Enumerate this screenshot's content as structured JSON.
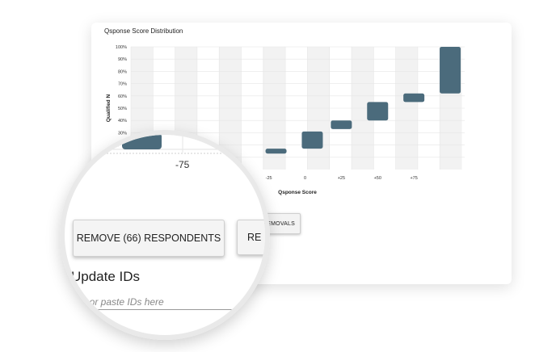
{
  "chart_data": {
    "type": "bar",
    "title": "Qsponse Score Distribution",
    "xlabel": "Qsponse Score",
    "ylabel": "Qualified N",
    "x_tick_labels": [
      "-25",
      "0",
      "+25",
      "+50",
      "+75"
    ],
    "y_tick_labels": [
      "10%",
      "20%",
      "30%",
      "40%",
      "50%",
      "60%",
      "70%",
      "80%",
      "90%",
      "100%"
    ],
    "ylim": [
      0,
      100
    ],
    "series": [
      {
        "values": [
          {
            "x": -20,
            "low": 13,
            "high": 17
          },
          {
            "x": 5,
            "low": 17,
            "high": 31
          },
          {
            "x": 25,
            "low": 33,
            "high": 40
          },
          {
            "x": 50,
            "low": 40,
            "high": 55
          },
          {
            "x": 75,
            "low": 55,
            "high": 62
          },
          {
            "x": 100,
            "low": 62,
            "high": 100
          }
        ]
      }
    ],
    "bar_color": "#4b6b7c",
    "grid": true
  },
  "buttons": {
    "remove_respondents": "REMOVE (66) RESPONDENTS",
    "removals_partial": "E REMOVALS",
    "second_partial": "RE"
  },
  "magnifier": {
    "tick_label": "-75",
    "section_title": "Update IDs",
    "input_placeholder": "e in or paste IDs here"
  }
}
